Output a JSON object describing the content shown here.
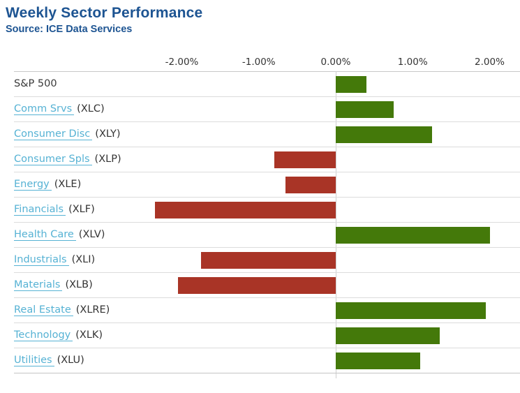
{
  "header": {
    "title": "Weekly Sector Performance",
    "source": "Source: ICE Data Services"
  },
  "colors": {
    "title_blue": "#1d5492",
    "link_blue": "#56b2d4",
    "positive_green": "#44790a",
    "negative_red": "#a93426",
    "axis_text": "#333333",
    "gridline": "#dcdcdc"
  },
  "axis": {
    "ticks": [
      {
        "label": "-2.00%",
        "value": -2
      },
      {
        "label": "-1.00%",
        "value": -1
      },
      {
        "label": "0.00%",
        "value": 0
      },
      {
        "label": "1.00%",
        "value": 1
      },
      {
        "label": "2.00%",
        "value": 2
      }
    ]
  },
  "rows": [
    {
      "name": "S&P 500",
      "ticker": "",
      "is_link": false,
      "value": 0.4
    },
    {
      "name": "Comm Srvs",
      "ticker": "(XLC)",
      "is_link": true,
      "value": 0.75
    },
    {
      "name": "Consumer Disc",
      "ticker": "(XLY)",
      "is_link": true,
      "value": 1.25
    },
    {
      "name": "Consumer Spls",
      "ticker": "(XLP)",
      "is_link": true,
      "value": -0.8
    },
    {
      "name": "Energy",
      "ticker": "(XLE)",
      "is_link": true,
      "value": -0.65
    },
    {
      "name": "Financials",
      "ticker": "(XLF)",
      "is_link": true,
      "value": -2.35
    },
    {
      "name": "Health Care",
      "ticker": "(XLV)",
      "is_link": true,
      "value": 2.0
    },
    {
      "name": "Industrials",
      "ticker": "(XLI)",
      "is_link": true,
      "value": -1.75
    },
    {
      "name": "Materials",
      "ticker": "(XLB)",
      "is_link": true,
      "value": -2.05
    },
    {
      "name": "Real Estate",
      "ticker": "(XLRE)",
      "is_link": true,
      "value": 1.95
    },
    {
      "name": "Technology",
      "ticker": "(XLK)",
      "is_link": true,
      "value": 1.35
    },
    {
      "name": "Utilities",
      "ticker": "(XLU)",
      "is_link": true,
      "value": 1.1
    }
  ],
  "chart_data": {
    "type": "bar",
    "orientation": "horizontal",
    "title": "Weekly Sector Performance",
    "subtitle": "Source: ICE Data Services",
    "categories": [
      "S&P 500",
      "Comm Srvs (XLC)",
      "Consumer Disc (XLY)",
      "Consumer Spls (XLP)",
      "Energy (XLE)",
      "Financials (XLF)",
      "Health Care (XLV)",
      "Industrials (XLI)",
      "Materials (XLB)",
      "Real Estate (XLRE)",
      "Technology (XLK)",
      "Utilities (XLU)"
    ],
    "values": [
      0.4,
      0.75,
      1.25,
      -0.8,
      -0.65,
      -2.35,
      2.0,
      -1.75,
      -2.05,
      1.95,
      1.35,
      1.1
    ],
    "unit": "%",
    "xlabel": "",
    "ylabel": "",
    "xlim": [
      -2.45,
      2.4
    ],
    "x_ticks": [
      -2.0,
      -1.0,
      0.0,
      1.0,
      2.0
    ],
    "grid": "zero-line-only",
    "legend": "none",
    "color_rule": "green if positive, red if negative"
  }
}
